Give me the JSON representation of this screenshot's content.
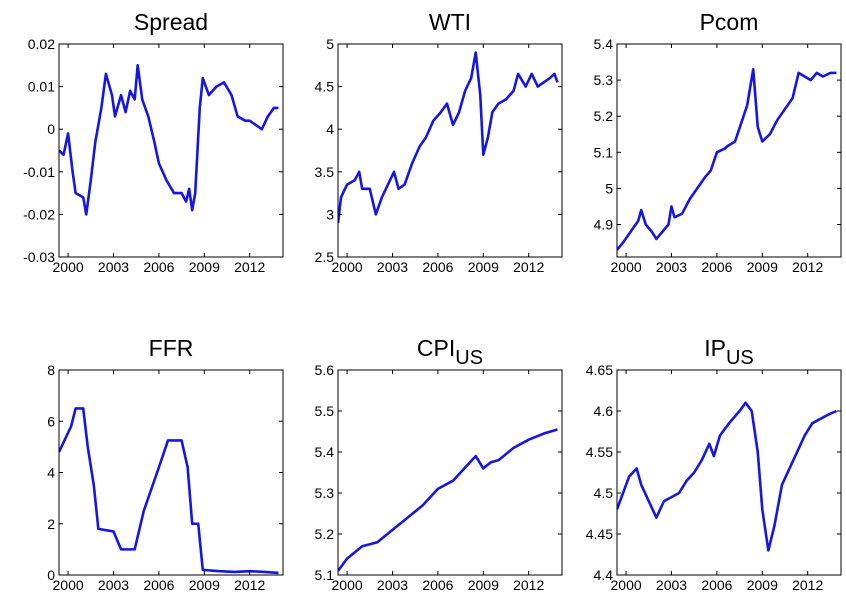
{
  "chart_data": [
    {
      "type": "line",
      "title": "Spread",
      "color": "#1515e6",
      "x": [
        1999.4,
        1999.7,
        2000.0,
        2000.3,
        2000.5,
        2001.0,
        2001.2,
        2001.5,
        2001.8,
        2002.2,
        2002.5,
        2002.9,
        2003.1,
        2003.5,
        2003.8,
        2004.1,
        2004.4,
        2004.6,
        2004.9,
        2005.3,
        2005.7,
        2006.0,
        2006.5,
        2007.0,
        2007.5,
        2007.8,
        2008.0,
        2008.2,
        2008.4,
        2008.7,
        2008.9,
        2009.3,
        2009.8,
        2010.3,
        2010.8,
        2011.2,
        2011.7,
        2012.0,
        2012.4,
        2012.8,
        2013.2,
        2013.6,
        2013.9
      ],
      "values": [
        -0.005,
        -0.006,
        -0.001,
        -0.01,
        -0.015,
        -0.016,
        -0.02,
        -0.012,
        -0.003,
        0.005,
        0.013,
        0.008,
        0.003,
        0.008,
        0.004,
        0.009,
        0.007,
        0.015,
        0.007,
        0.003,
        -0.003,
        -0.008,
        -0.012,
        -0.015,
        -0.015,
        -0.017,
        -0.014,
        -0.019,
        -0.015,
        0.005,
        0.012,
        0.008,
        0.01,
        0.011,
        0.008,
        0.003,
        0.002,
        0.002,
        0.001,
        0.0,
        0.003,
        0.005,
        0.005
      ],
      "xlim": [
        1999.4,
        2014.2
      ],
      "xticks": [
        2000,
        2003,
        2006,
        2009,
        2012
      ],
      "ylim": [
        -0.03,
        0.02
      ],
      "yticks": [
        -0.03,
        -0.02,
        -0.01,
        0,
        0.01,
        0.02
      ]
    },
    {
      "type": "line",
      "title": "WTI",
      "color": "#1515e6",
      "x": [
        1999.4,
        1999.6,
        2000.0,
        2000.5,
        2000.8,
        2001.0,
        2001.5,
        2001.9,
        2002.3,
        2002.7,
        2003.1,
        2003.4,
        2003.8,
        2004.3,
        2004.8,
        2005.2,
        2005.7,
        2006.2,
        2006.6,
        2007.0,
        2007.4,
        2007.8,
        2008.2,
        2008.5,
        2008.8,
        2009.0,
        2009.3,
        2009.6,
        2010.0,
        2010.5,
        2011.0,
        2011.3,
        2011.8,
        2012.2,
        2012.6,
        2013.0,
        2013.4,
        2013.7,
        2013.9
      ],
      "values": [
        2.9,
        3.2,
        3.35,
        3.4,
        3.5,
        3.3,
        3.3,
        3.0,
        3.2,
        3.35,
        3.5,
        3.3,
        3.35,
        3.6,
        3.8,
        3.9,
        4.1,
        4.2,
        4.3,
        4.05,
        4.2,
        4.45,
        4.6,
        4.9,
        4.4,
        3.7,
        3.9,
        4.2,
        4.3,
        4.35,
        4.45,
        4.65,
        4.5,
        4.65,
        4.5,
        4.55,
        4.6,
        4.65,
        4.55
      ],
      "xlim": [
        1999.4,
        2014.2
      ],
      "xticks": [
        2000,
        2003,
        2006,
        2009,
        2012
      ],
      "ylim": [
        2.5,
        5
      ],
      "yticks": [
        2.5,
        3,
        3.5,
        4,
        4.5,
        5
      ]
    },
    {
      "type": "line",
      "title": "Pcom",
      "color": "#1515e6",
      "x": [
        1999.4,
        1999.8,
        2000.3,
        2000.8,
        2001.0,
        2001.3,
        2001.7,
        2002.0,
        2002.4,
        2002.8,
        2003.0,
        2003.2,
        2003.7,
        2004.2,
        2004.7,
        2005.2,
        2005.6,
        2006.0,
        2006.5,
        2006.8,
        2007.2,
        2007.6,
        2008.0,
        2008.4,
        2008.7,
        2009.0,
        2009.5,
        2010.0,
        2010.5,
        2011.0,
        2011.4,
        2011.8,
        2012.2,
        2012.6,
        2013.0,
        2013.5,
        2013.9
      ],
      "values": [
        4.83,
        4.85,
        4.88,
        4.91,
        4.94,
        4.9,
        4.88,
        4.86,
        4.88,
        4.9,
        4.95,
        4.92,
        4.93,
        4.97,
        5.0,
        5.03,
        5.05,
        5.1,
        5.11,
        5.12,
        5.13,
        5.18,
        5.23,
        5.33,
        5.17,
        5.13,
        5.15,
        5.19,
        5.22,
        5.25,
        5.32,
        5.31,
        5.3,
        5.32,
        5.31,
        5.32,
        5.32
      ],
      "xlim": [
        1999.4,
        2014.2
      ],
      "xticks": [
        2000,
        2003,
        2006,
        2009,
        2012
      ],
      "ylim": [
        4.81,
        5.4
      ],
      "yticks": [
        4.9,
        5,
        5.1,
        5.2,
        5.3,
        5.4
      ]
    },
    {
      "type": "line",
      "title": "FFR",
      "color": "#1515e6",
      "x": [
        1999.4,
        1999.8,
        2000.2,
        2000.5,
        2001.0,
        2001.3,
        2001.7,
        2002.0,
        2002.5,
        2003.0,
        2003.5,
        2004.4,
        2005.0,
        2006.0,
        2006.6,
        2007.5,
        2007.9,
        2008.2,
        2008.6,
        2008.9,
        2010.0,
        2011.0,
        2012.0,
        2013.0,
        2013.9
      ],
      "values": [
        4.8,
        5.3,
        5.8,
        6.5,
        6.5,
        5.0,
        3.5,
        1.8,
        1.75,
        1.7,
        1.0,
        1.0,
        2.5,
        4.2,
        5.25,
        5.25,
        4.2,
        2.0,
        2.0,
        0.2,
        0.15,
        0.12,
        0.15,
        0.12,
        0.08
      ],
      "xlim": [
        1999.4,
        2014.2
      ],
      "xticks": [
        2000,
        2003,
        2006,
        2009,
        2012
      ],
      "ylim": [
        0,
        8
      ],
      "yticks": [
        0,
        2,
        4,
        6,
        8
      ]
    },
    {
      "type": "line",
      "title": "CPI",
      "subscript": "US",
      "color": "#1515e6",
      "x": [
        1999.4,
        2000,
        2001,
        2002,
        2003,
        2004,
        2005,
        2006,
        2007,
        2008,
        2008.5,
        2009.0,
        2009.5,
        2010,
        2011,
        2012,
        2013,
        2013.9
      ],
      "values": [
        5.11,
        5.14,
        5.17,
        5.18,
        5.21,
        5.24,
        5.27,
        5.31,
        5.33,
        5.37,
        5.39,
        5.36,
        5.375,
        5.38,
        5.41,
        5.43,
        5.445,
        5.455
      ],
      "xlim": [
        1999.4,
        2014.2
      ],
      "xticks": [
        2000,
        2003,
        2006,
        2009,
        2012
      ],
      "ylim": [
        5.1,
        5.6
      ],
      "yticks": [
        5.1,
        5.2,
        5.3,
        5.4,
        5.5,
        5.6
      ]
    },
    {
      "type": "line",
      "title": "IP",
      "subscript": "US",
      "color": "#1515e6",
      "x": [
        1999.4,
        1999.8,
        2000.2,
        2000.7,
        2001.0,
        2001.5,
        2002.0,
        2002.5,
        2003.0,
        2003.5,
        2004.0,
        2004.5,
        2005.0,
        2005.5,
        2005.8,
        2006.2,
        2006.8,
        2007.5,
        2007.9,
        2008.3,
        2008.7,
        2009.0,
        2009.4,
        2009.8,
        2010.3,
        2010.8,
        2011.3,
        2011.8,
        2012.3,
        2012.8,
        2013.3,
        2013.9
      ],
      "values": [
        4.48,
        4.5,
        4.52,
        4.53,
        4.51,
        4.49,
        4.47,
        4.49,
        4.495,
        4.5,
        4.515,
        4.525,
        4.54,
        4.56,
        4.545,
        4.57,
        4.585,
        4.6,
        4.61,
        4.6,
        4.55,
        4.48,
        4.43,
        4.46,
        4.51,
        4.53,
        4.55,
        4.57,
        4.585,
        4.59,
        4.595,
        4.6
      ],
      "xlim": [
        1999.4,
        2014.2
      ],
      "xticks": [
        2000,
        2003,
        2006,
        2009,
        2012
      ],
      "ylim": [
        4.4,
        4.65
      ],
      "yticks": [
        4.4,
        4.45,
        4.5,
        4.55,
        4.6,
        4.65
      ]
    }
  ]
}
